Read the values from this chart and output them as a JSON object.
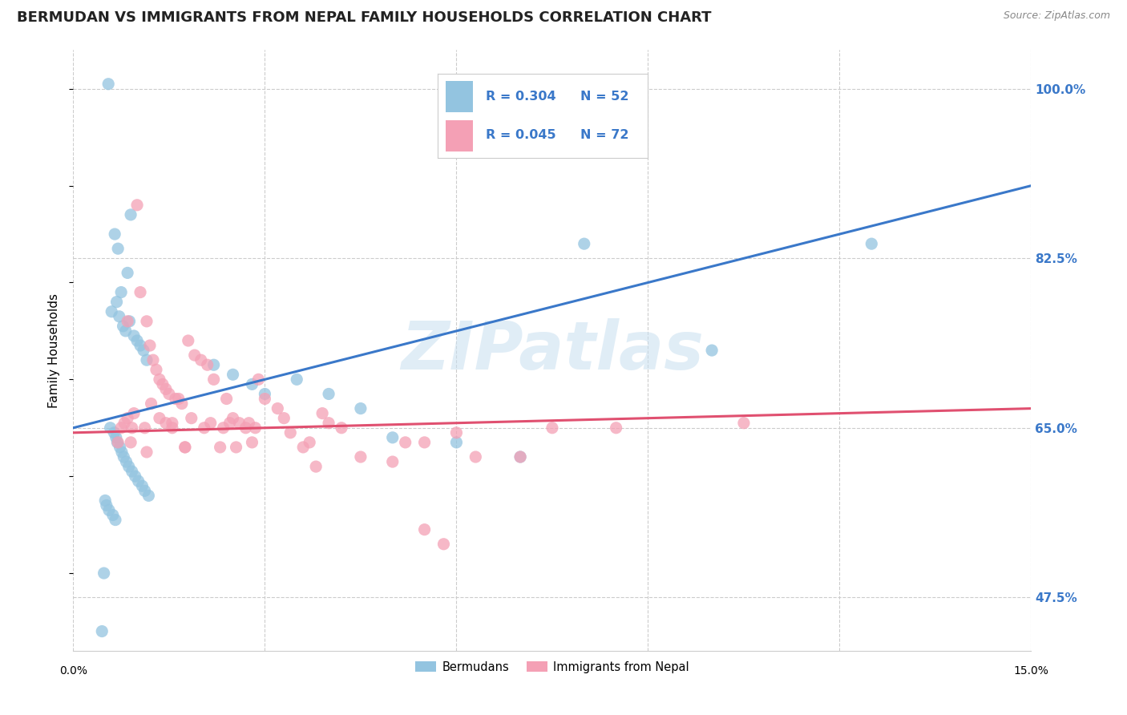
{
  "title": "BERMUDAN VS IMMIGRANTS FROM NEPAL FAMILY HOUSEHOLDS CORRELATION CHART",
  "source": "Source: ZipAtlas.com",
  "ylabel": "Family Households",
  "yticks": [
    47.5,
    65.0,
    82.5,
    100.0
  ],
  "xlim": [
    0.0,
    15.0
  ],
  "ylim": [
    42.0,
    104.0
  ],
  "watermark": "ZIPatlas",
  "legend_R_blue": "R = 0.304",
  "legend_N_blue": "N = 52",
  "legend_R_pink": "R = 0.045",
  "legend_N_pink": "N = 72",
  "bermudan_color": "#93c4e0",
  "nepal_color": "#f4a0b5",
  "bermudan_line_color": "#3a78c9",
  "nepal_line_color": "#e05070",
  "bermudan_scatter_x": [
    0.55,
    0.9,
    0.65,
    0.7,
    0.85,
    0.75,
    0.68,
    0.6,
    0.72,
    0.88,
    0.78,
    0.82,
    0.95,
    1.0,
    1.05,
    1.1,
    1.15,
    2.2,
    2.5,
    2.8,
    3.0,
    3.5,
    4.0,
    4.5,
    5.0,
    6.0,
    7.0,
    8.0,
    10.0,
    12.5,
    0.58,
    0.64,
    0.67,
    0.69,
    0.73,
    0.76,
    0.79,
    0.83,
    0.87,
    0.92,
    0.97,
    1.02,
    1.08,
    1.12,
    1.18,
    0.5,
    0.52,
    0.56,
    0.62,
    0.66,
    0.48,
    0.45
  ],
  "bermudan_scatter_y": [
    100.5,
    87.0,
    85.0,
    83.5,
    81.0,
    79.0,
    78.0,
    77.0,
    76.5,
    76.0,
    75.5,
    75.0,
    74.5,
    74.0,
    73.5,
    73.0,
    72.0,
    71.5,
    70.5,
    69.5,
    68.5,
    70.0,
    68.5,
    67.0,
    64.0,
    63.5,
    62.0,
    84.0,
    73.0,
    84.0,
    65.0,
    64.5,
    64.0,
    63.5,
    63.0,
    62.5,
    62.0,
    61.5,
    61.0,
    60.5,
    60.0,
    59.5,
    59.0,
    58.5,
    58.0,
    57.5,
    57.0,
    56.5,
    56.0,
    55.5,
    50.0,
    44.0
  ],
  "nepal_scatter_x": [
    0.7,
    1.0,
    1.05,
    1.15,
    1.2,
    1.25,
    1.3,
    1.35,
    1.4,
    1.45,
    1.5,
    1.6,
    1.7,
    1.8,
    1.9,
    2.0,
    2.1,
    2.2,
    2.3,
    2.4,
    2.5,
    2.6,
    2.7,
    2.8,
    2.9,
    3.0,
    3.2,
    3.4,
    3.6,
    3.8,
    4.0,
    4.5,
    5.0,
    5.5,
    6.0,
    7.0,
    8.5,
    10.5,
    1.55,
    1.75,
    0.8,
    0.85,
    0.9,
    1.22,
    1.75,
    2.15,
    0.85,
    2.85,
    3.3,
    3.9,
    5.2,
    5.5,
    2.45,
    1.85,
    0.92,
    1.12,
    1.65,
    2.05,
    1.45,
    3.7,
    6.3,
    5.8,
    2.55,
    2.35,
    0.95,
    0.75,
    1.15,
    1.55,
    1.35,
    2.75,
    4.2,
    7.5
  ],
  "nepal_scatter_y": [
    63.5,
    88.0,
    79.0,
    76.0,
    73.5,
    72.0,
    71.0,
    70.0,
    69.5,
    69.0,
    68.5,
    68.0,
    67.5,
    74.0,
    72.5,
    72.0,
    71.5,
    70.0,
    63.0,
    68.0,
    66.0,
    65.5,
    65.0,
    63.5,
    70.0,
    68.0,
    67.0,
    64.5,
    63.0,
    61.0,
    65.5,
    62.0,
    61.5,
    63.5,
    64.5,
    62.0,
    65.0,
    65.5,
    65.0,
    63.0,
    65.5,
    66.0,
    63.5,
    67.5,
    63.0,
    65.5,
    76.0,
    65.0,
    66.0,
    66.5,
    63.5,
    54.5,
    65.5,
    66.0,
    65.0,
    65.0,
    68.0,
    65.0,
    65.5,
    63.5,
    62.0,
    53.0,
    63.0,
    65.0,
    66.5,
    65.0,
    62.5,
    65.5,
    66.0,
    65.5,
    65.0,
    65.0
  ],
  "bermudan_trendline_x": [
    0.0,
    15.0
  ],
  "bermudan_trendline_y": [
    65.0,
    90.0
  ],
  "nepal_trendline_x": [
    0.0,
    15.0
  ],
  "nepal_trendline_y": [
    64.5,
    67.0
  ],
  "title_fontsize": 13,
  "axis_label_fontsize": 11,
  "tick_fontsize": 11,
  "background_color": "#ffffff",
  "grid_color": "#cccccc",
  "xtick_positions": [
    0.0,
    3.0,
    6.0,
    9.0,
    12.0,
    15.0
  ]
}
